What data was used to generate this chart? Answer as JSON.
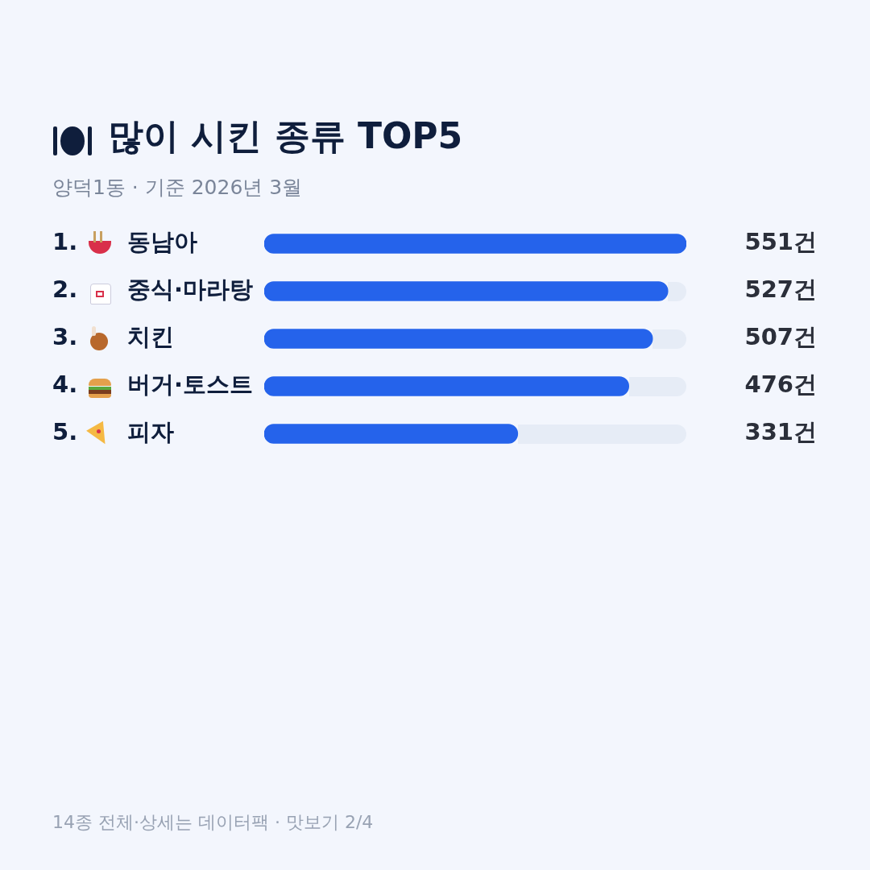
{
  "chart_data": {
    "type": "bar",
    "orientation": "horizontal",
    "title": "많이 시킨 종류 TOP5",
    "subtitle": "양덕1동 · 기준 2026년 3월",
    "categories": [
      "1. 동남아",
      "2. 중식·마라탕",
      "3. 치킨",
      "4. 버거·토스트",
      "5. 피자"
    ],
    "values": [
      551,
      527,
      507,
      476,
      331
    ],
    "color": "#2563eb",
    "value_labels": [
      "551건",
      "527건",
      "507건",
      "476건",
      "331건"
    ],
    "annotations": [
      "14종 전체·상세는 데이터팩 · 맛보기 2/4"
    ],
    "legend": false,
    "tick_labels": false
  }
}
